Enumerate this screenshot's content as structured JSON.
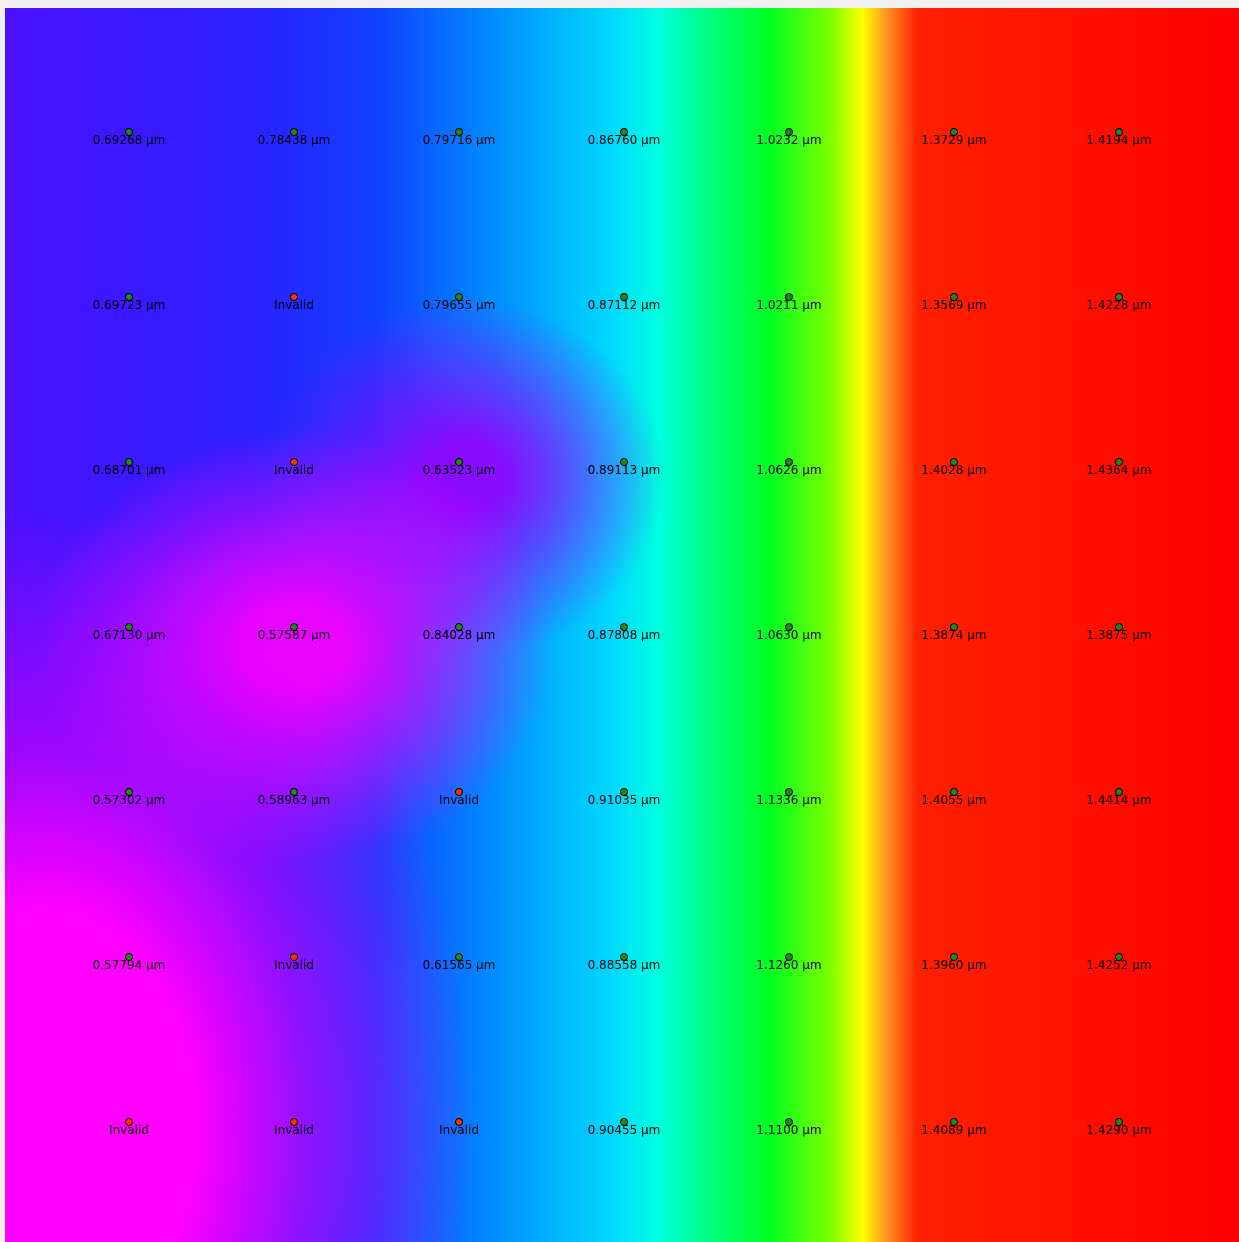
{
  "points": [
    [
      {
        "label": "0.69268 μm",
        "color": "#1e8a1e"
      },
      {
        "label": "0.78438 μm",
        "color": "#1e8a1e"
      },
      {
        "label": "0.79716 μm",
        "color": "#1e8a1e"
      },
      {
        "label": "0.86760 μm",
        "color": "#1e8a1e"
      },
      {
        "label": "1.0232 μm",
        "color": "#1e8a1e"
      },
      {
        "label": "1.3729 μm",
        "color": "#1e8a1e"
      },
      {
        "label": "1.4194 μm",
        "color": "#1e8a1e"
      }
    ],
    [
      {
        "label": "0.69723 μm",
        "color": "#1e8a1e"
      },
      {
        "label": "Invalid",
        "color": "#ff3000"
      },
      {
        "label": "0.79655 μm",
        "color": "#1e8a1e"
      },
      {
        "label": "0.87112 μm",
        "color": "#1e8a1e"
      },
      {
        "label": "1.0211 μm",
        "color": "#1e8a1e"
      },
      {
        "label": "1.3569 μm",
        "color": "#1e8a1e"
      },
      {
        "label": "1.4228 μm",
        "color": "#1e8a1e"
      }
    ],
    [
      {
        "label": "0.68701 μm",
        "color": "#1e8a1e"
      },
      {
        "label": "Invalid",
        "color": "#ff3000"
      },
      {
        "label": "0.63523 μm",
        "color": "#1e8a1e"
      },
      {
        "label": "0.89113 μm",
        "color": "#1e8a1e"
      },
      {
        "label": "1.0626 μm",
        "color": "#1e8a1e"
      },
      {
        "label": "1.4028 μm",
        "color": "#1e8a1e"
      },
      {
        "label": "1.4364 μm",
        "color": "#1e8a1e"
      }
    ],
    [
      {
        "label": "0.67130 μm",
        "color": "#1e8a1e"
      },
      {
        "label": "0.57587 μm",
        "color": "#1e8a1e"
      },
      {
        "label": "0.84028 μm",
        "color": "#1e8a1e"
      },
      {
        "label": "0.87808 μm",
        "color": "#1e8a1e"
      },
      {
        "label": "1.0630 μm",
        "color": "#1e8a1e"
      },
      {
        "label": "1.3874 μm",
        "color": "#1e8a1e"
      },
      {
        "label": "1.3875 μm",
        "color": "#1e8a1e"
      }
    ],
    [
      {
        "label": "0.57302 μm",
        "color": "#1e8a1e"
      },
      {
        "label": "0.58963 μm",
        "color": "#1e8a1e"
      },
      {
        "label": "Invalid",
        "color": "#ff3000"
      },
      {
        "label": "0.91035 μm",
        "color": "#1e8a1e"
      },
      {
        "label": "1.1336 μm",
        "color": "#1e8a1e"
      },
      {
        "label": "1.4055 μm",
        "color": "#1e8a1e"
      },
      {
        "label": "1.4414 μm",
        "color": "#1e8a1e"
      }
    ],
    [
      {
        "label": "0.57794 μm",
        "color": "#1e8a1e"
      },
      {
        "label": "Invalid",
        "color": "#ff3000"
      },
      {
        "label": "0.61565 μm",
        "color": "#1e8a1e"
      },
      {
        "label": "0.88558 μm",
        "color": "#1e8a1e"
      },
      {
        "label": "1.1260 μm",
        "color": "#1e8a1e"
      },
      {
        "label": "1.3960 μm",
        "color": "#1e8a1e"
      },
      {
        "label": "1.4252 μm",
        "color": "#1e8a1e"
      }
    ],
    [
      {
        "label": "Invalid",
        "color": "#ff3000"
      },
      {
        "label": "Invalid",
        "color": "#ff3000"
      },
      {
        "label": "Invalid",
        "color": "#ff3000"
      },
      {
        "label": "0.90455 μm",
        "color": "#1e8a1e"
      },
      {
        "label": "1.1100 μm",
        "color": "#1e8a1e"
      },
      {
        "label": "1.4089 μm",
        "color": "#1e8a1e"
      },
      {
        "label": "1.4290 μm",
        "color": "#1e8a1e"
      }
    ]
  ]
}
